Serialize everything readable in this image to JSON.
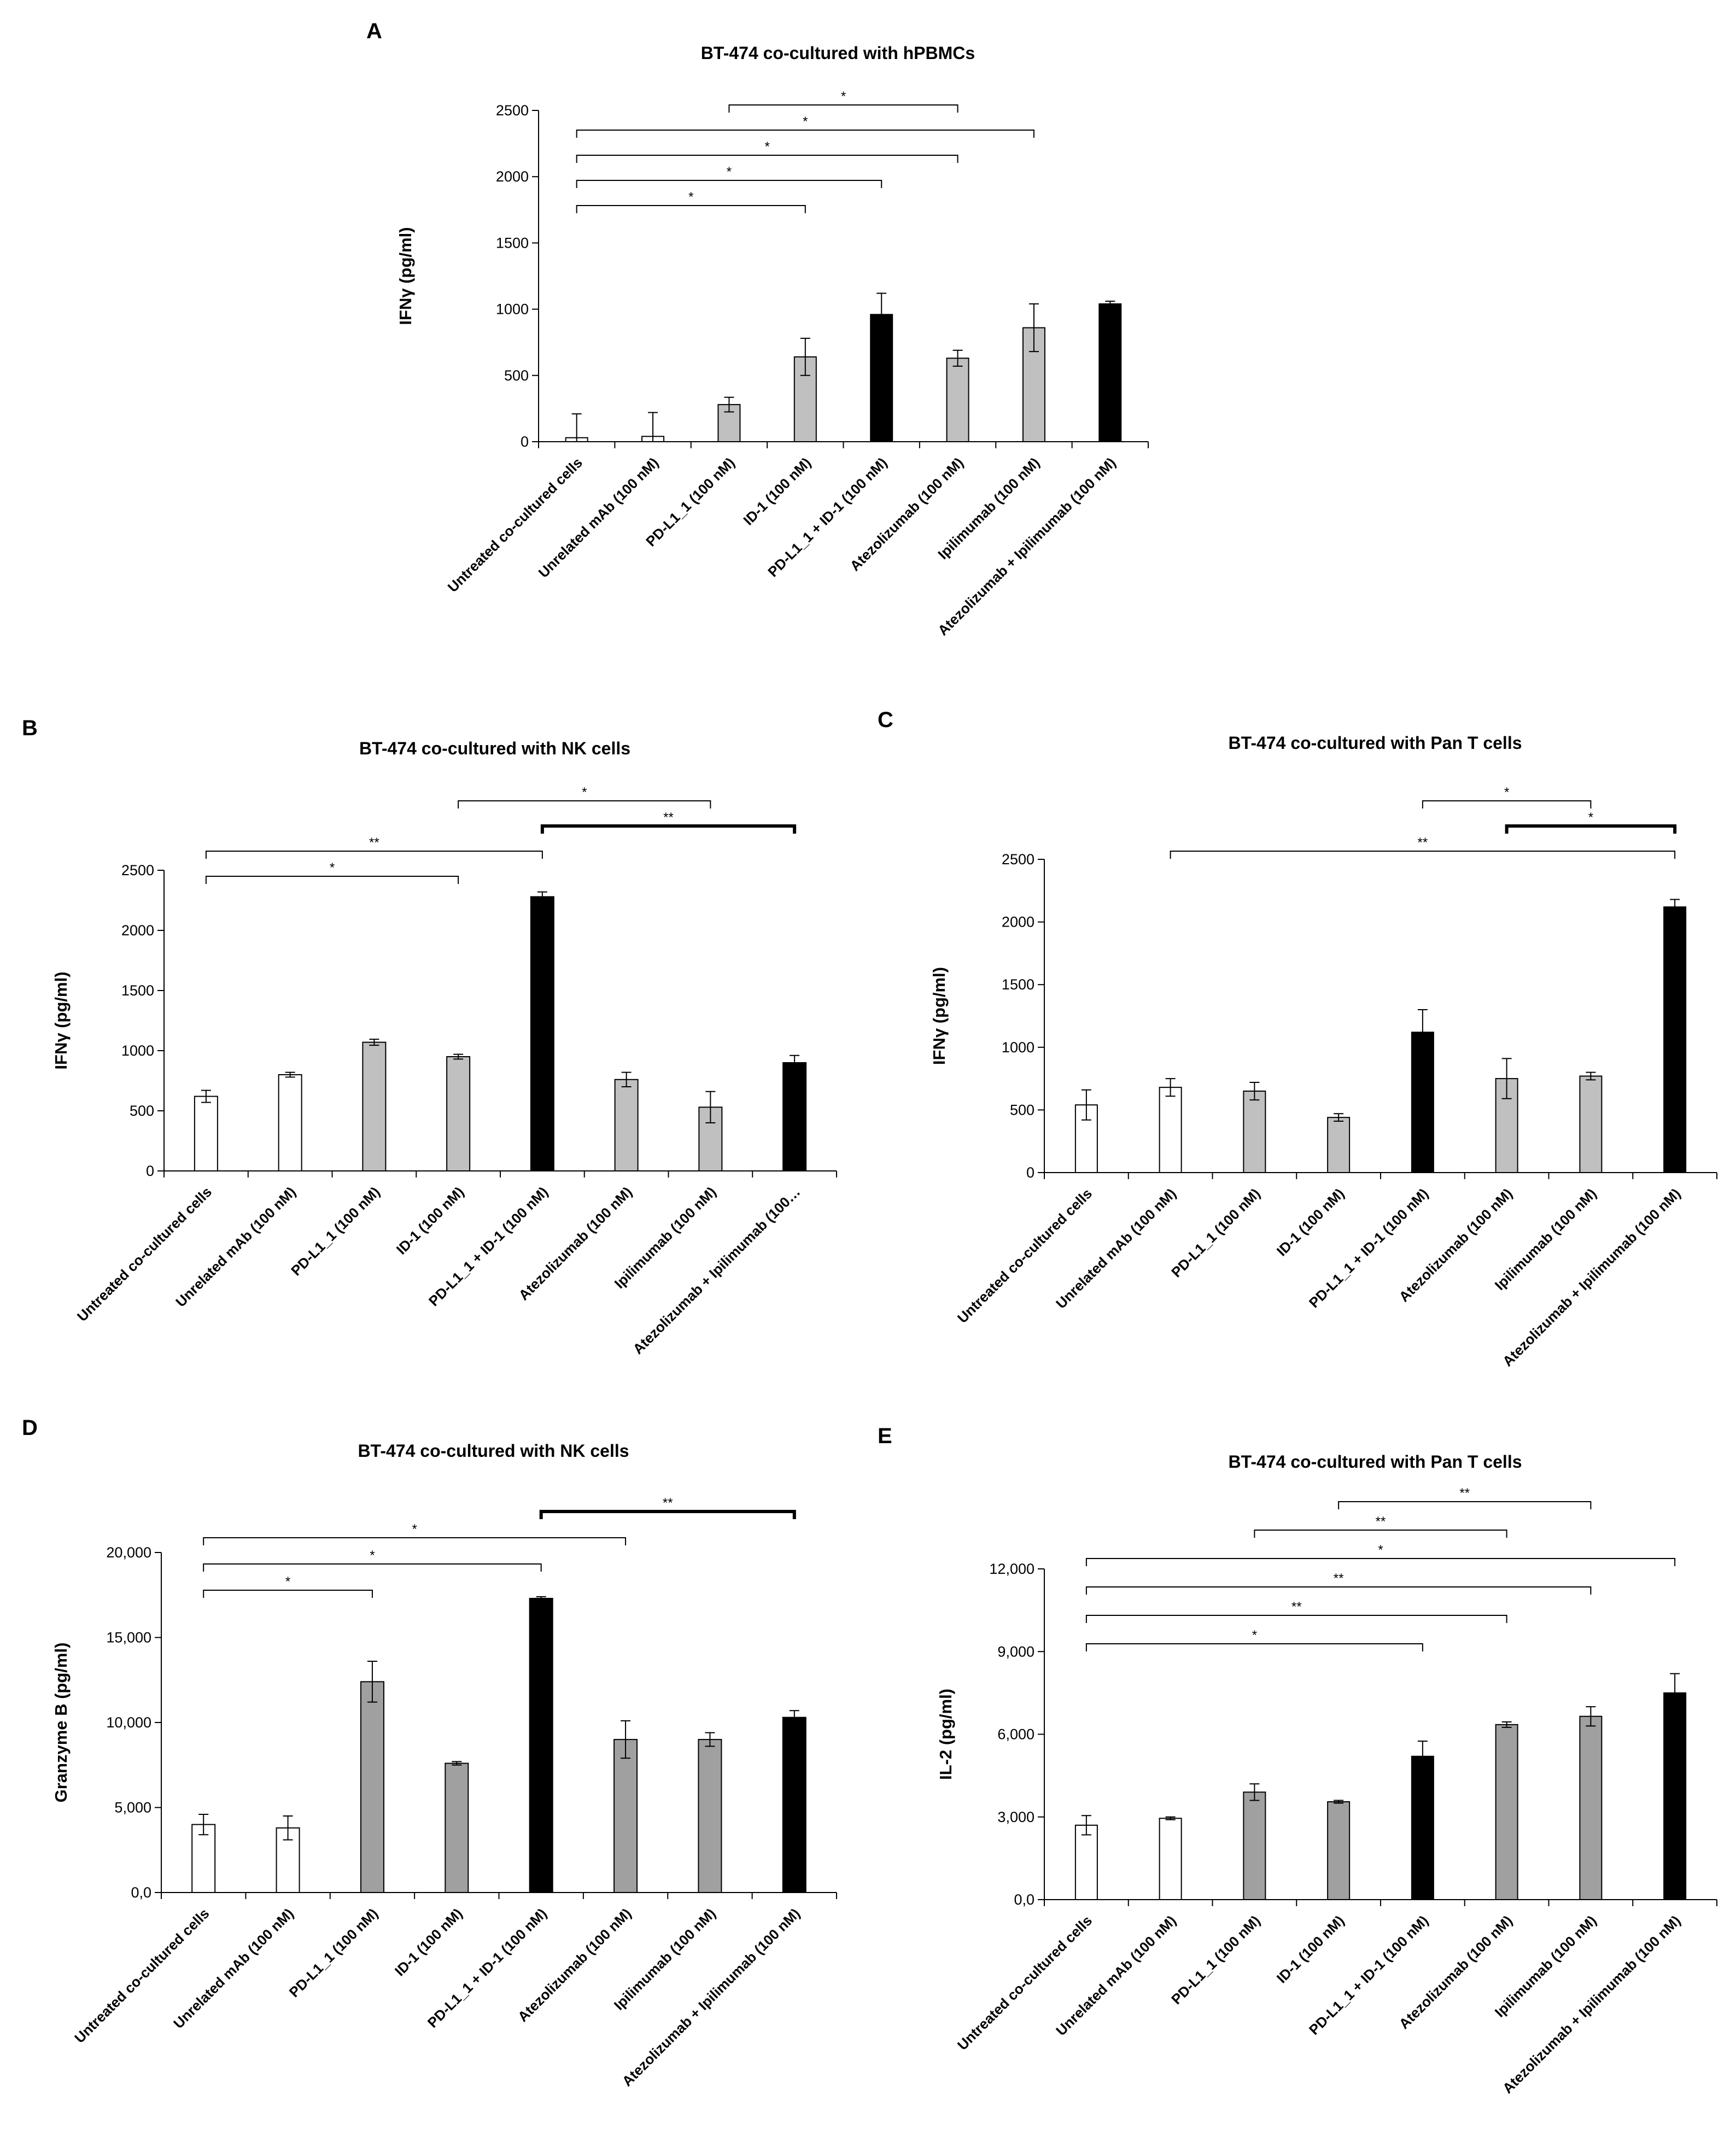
{
  "figure_panels": [
    "A",
    "B",
    "C",
    "D",
    "E"
  ],
  "chart_data": [
    {
      "panel": "A",
      "type": "bar",
      "title": "BT-474 co-cultured with hPBMCs",
      "xlabel": "",
      "ylabel": "IFNγ (pg/ml)",
      "ylim": [
        0,
        2500
      ],
      "yticks": [
        "0",
        "500",
        "1000",
        "1500",
        "2000",
        "2500"
      ],
      "yticks_values": [
        0,
        500,
        1000,
        1500,
        2000,
        2500
      ],
      "categories": [
        "Untreated co-cultured cells",
        "Unrelated mAb (100 nM)",
        "PD-L1_1 (100 nM)",
        "ID-1 (100 nM)",
        "PD-L1_1 + ID-1 (100 nM)",
        "Atezolizumab (100 nM)",
        "Ipilimumab (100 nM)",
        "Atezolizumab + Ipilimumab (100 nM)"
      ],
      "values": [
        30,
        40,
        280,
        640,
        960,
        630,
        860,
        1040
      ],
      "errors": [
        180,
        180,
        55,
        140,
        160,
        60,
        180,
        20
      ],
      "bar_colors": [
        "#ffffff",
        "#ffffff",
        "#c0c0c0",
        "#c0c0c0",
        "#000000",
        "#c0c0c0",
        "#c0c0c0",
        "#000000"
      ],
      "significance": [
        {
          "from": 2,
          "to": 5,
          "label": "*"
        },
        {
          "from": 0,
          "to": 6,
          "label": "*"
        },
        {
          "from": 0,
          "to": 5,
          "label": "*"
        },
        {
          "from": 0,
          "to": 4,
          "label": "*"
        },
        {
          "from": 0,
          "to": 3,
          "label": "*"
        }
      ]
    },
    {
      "panel": "B",
      "type": "bar",
      "title": "BT-474 co-cultured with NK cells",
      "xlabel": "",
      "ylabel": "IFNγ (pg/ml)",
      "ylim": [
        0,
        2500
      ],
      "yticks": [
        "0",
        "500",
        "1000",
        "1500",
        "2000",
        "2500"
      ],
      "yticks_values": [
        0,
        500,
        1000,
        1500,
        2000,
        2500
      ],
      "categories": [
        "Untreated co-cultured cells",
        "Unrelated mAb (100 nM)",
        "PD-L1_1 (100 nM)",
        "ID-1 (100 nM)",
        "PD-L1_1 + ID-1 (100 nM)",
        "Atezolizumab (100 nM)",
        "Ipilimumab (100 nM)",
        "Atezolizumab + Ipilimumab (100…"
      ],
      "values": [
        620,
        800,
        1070,
        950,
        2280,
        760,
        530,
        900
      ],
      "errors": [
        50,
        20,
        25,
        20,
        40,
        60,
        130,
        60
      ],
      "bar_colors": [
        "#ffffff",
        "#ffffff",
        "#c0c0c0",
        "#c0c0c0",
        "#000000",
        "#c0c0c0",
        "#c0c0c0",
        "#000000"
      ],
      "significance": [
        {
          "from": 3,
          "to": 6,
          "label": "*"
        },
        {
          "from": 4,
          "to": 7,
          "label": "**",
          "bold": true
        },
        {
          "from": 0,
          "to": 4,
          "label": "**"
        },
        {
          "from": 0,
          "to": 3,
          "label": "*"
        }
      ]
    },
    {
      "panel": "C",
      "type": "bar",
      "title": "BT-474 co-cultured with Pan T cells",
      "xlabel": "",
      "ylabel": "IFNγ (pg/ml)",
      "ylim": [
        0,
        2500
      ],
      "yticks": [
        "0",
        "500",
        "1000",
        "1500",
        "2000",
        "2500"
      ],
      "yticks_values": [
        0,
        500,
        1000,
        1500,
        2000,
        2500
      ],
      "categories": [
        "Untreated co-cultured cells",
        "Unrelated mAb (100 nM)",
        "PD-L1_1 (100 nM)",
        "ID-1 (100 nM)",
        "PD-L1_1 + ID-1 (100 nM)",
        "Atezolizumab (100 nM)",
        "Ipilimumab (100 nM)",
        "Atezolizumab + Ipilimumab (100 nM)"
      ],
      "values": [
        540,
        680,
        650,
        440,
        1120,
        750,
        770,
        2120
      ],
      "errors": [
        120,
        70,
        70,
        30,
        180,
        160,
        30,
        60
      ],
      "bar_colors": [
        "#ffffff",
        "#ffffff",
        "#c0c0c0",
        "#c0c0c0",
        "#000000",
        "#c0c0c0",
        "#c0c0c0",
        "#000000"
      ],
      "significance": [
        {
          "from": 4,
          "to": 6,
          "label": "*"
        },
        {
          "from": 5,
          "to": 7,
          "label": "*",
          "bold": true
        },
        {
          "from": 1,
          "to": 7,
          "label": "**"
        }
      ]
    },
    {
      "panel": "D",
      "type": "bar",
      "title": "BT-474 co-cultured with NK cells",
      "xlabel": "",
      "ylabel": "Granzyme B (pg/ml)",
      "ylim": [
        0,
        20000
      ],
      "yticks": [
        "0,0",
        "5,000",
        "10,000",
        "15,000",
        "20,000"
      ],
      "yticks_values": [
        0,
        5000,
        10000,
        15000,
        20000
      ],
      "categories": [
        "Untreated co-cultured cells",
        "Unrelated mAb (100 nM)",
        "PD-L1_1 (100 nM)",
        "ID-1 (100 nM)",
        "PD-L1_1 + ID-1 (100 nM)",
        "Atezolizumab (100 nM)",
        "Ipilimumab (100 nM)",
        "Atezolizumab + Ipilimumab (100 nM)"
      ],
      "values": [
        4000,
        3800,
        12400,
        7600,
        17300,
        9000,
        9000,
        10300
      ],
      "errors": [
        600,
        700,
        1200,
        100,
        100,
        1100,
        400,
        400
      ],
      "bar_colors": [
        "#ffffff",
        "#ffffff",
        "#a0a0a0",
        "#a0a0a0",
        "#000000",
        "#a0a0a0",
        "#a0a0a0",
        "#000000"
      ],
      "significance": [
        {
          "from": 4,
          "to": 7,
          "label": "**",
          "bold": true
        },
        {
          "from": 0,
          "to": 5,
          "label": "*"
        },
        {
          "from": 0,
          "to": 4,
          "label": "*"
        },
        {
          "from": 0,
          "to": 2,
          "label": "*"
        }
      ]
    },
    {
      "panel": "E",
      "type": "bar",
      "title": "BT-474 co-cultured with Pan T cells",
      "xlabel": "",
      "ylabel": "IL-2 (pg/ml)",
      "ylim": [
        0,
        12000
      ],
      "yticks": [
        "0,0",
        "3,000",
        "6,000",
        "9,000",
        "12,000"
      ],
      "yticks_values": [
        0,
        3000,
        6000,
        9000,
        12000
      ],
      "categories": [
        "Untreated co-cultured cells",
        "Unrelated mAb (100 nM)",
        "PD-L1_1 (100 nM)",
        "ID-1 (100 nM)",
        "PD-L1_1 + ID-1 (100 nM)",
        "Atezolizumab (100 nM)",
        "Ipilimumab (100 nM)",
        "Atezolizumab + Ipilimumab (100 nM)"
      ],
      "values": [
        2700,
        2950,
        3900,
        3550,
        5200,
        6350,
        6650,
        7500
      ],
      "errors": [
        350,
        50,
        300,
        50,
        550,
        100,
        350,
        700
      ],
      "bar_colors": [
        "#ffffff",
        "#ffffff",
        "#a0a0a0",
        "#a0a0a0",
        "#000000",
        "#a0a0a0",
        "#a0a0a0",
        "#000000"
      ],
      "significance": [
        {
          "from": 3,
          "to": 6,
          "label": "**"
        },
        {
          "from": 2,
          "to": 5,
          "label": "**"
        },
        {
          "from": 0,
          "to": 7,
          "label": "*"
        },
        {
          "from": 0,
          "to": 6,
          "label": "**"
        },
        {
          "from": 0,
          "to": 5,
          "label": "**"
        },
        {
          "from": 0,
          "to": 4,
          "label": "*"
        }
      ]
    }
  ]
}
